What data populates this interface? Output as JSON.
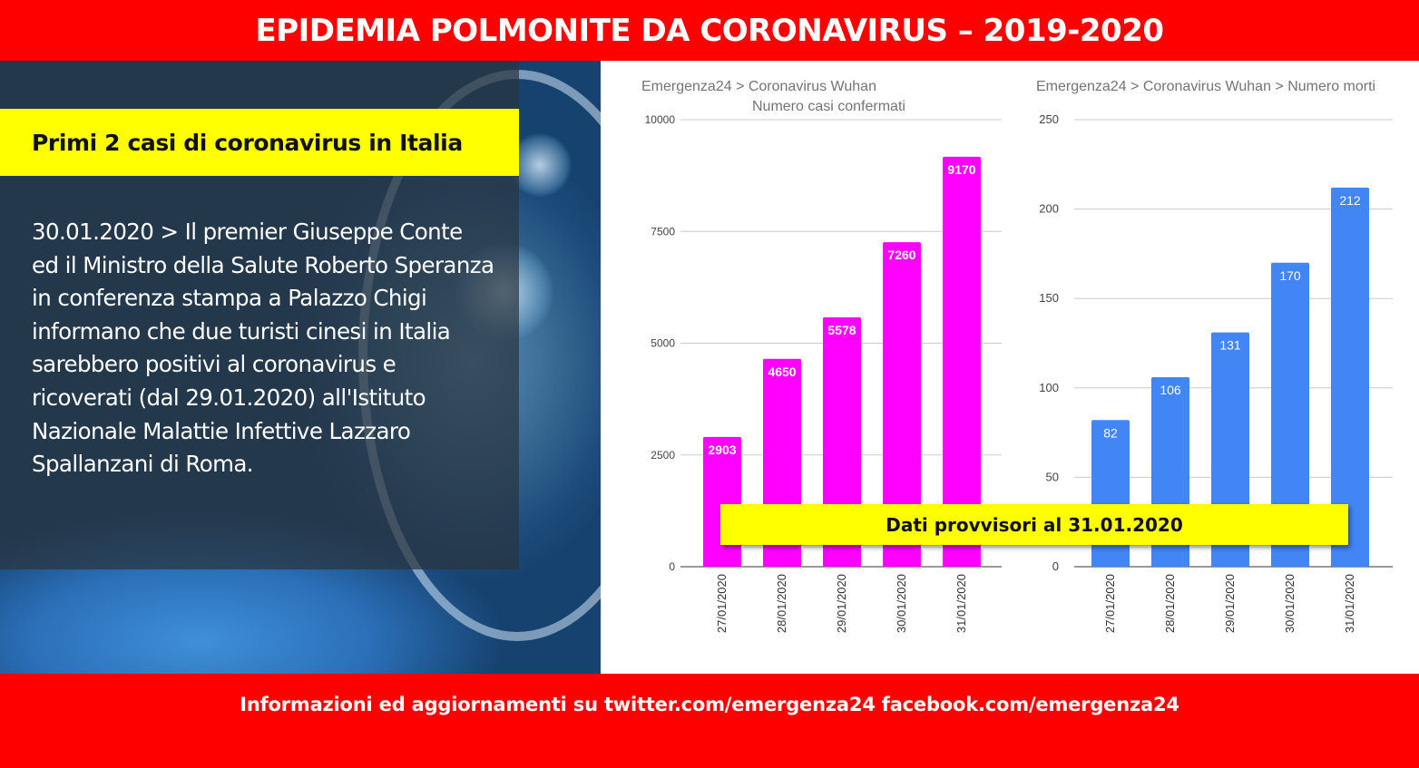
{
  "header": {
    "title": "EPIDEMIA POLMONITE DA CORONAVIRUS – 2019-2020"
  },
  "panel": {
    "headline": "Primi 2 casi di coronavirus in Italia",
    "body": "30.01.2020 > Il premier Giuseppe Conte ed il Ministro della Salute Roberto Speranza in conferenza stampa a Palazzo Chigi informano che due turisti cinesi in Italia sarebbero positivi al coronavirus e ricoverati (dal 29.01.2020) all'Istituto Nazionale Malattie Infettive Lazzaro Spallanzani di Roma."
  },
  "note": "Dati provvisori  al 31.01.2020",
  "footer": {
    "text": "Informazioni ed aggiornamenti su twitter.com/emergenza24   facebook.com/emergenza24"
  },
  "chart_data": [
    {
      "type": "bar",
      "title": "Emergenza24 > Coronavirus Wuhan",
      "subtitle": "Numero casi confermati",
      "categories": [
        "27/01/2020",
        "28/01/2020",
        "29/01/2020",
        "30/01/2020",
        "31/01/2020"
      ],
      "values": [
        2903,
        4650,
        5578,
        7260,
        9170
      ],
      "ylim": [
        0,
        10000
      ],
      "yticks": [
        0,
        2500,
        5000,
        7500,
        10000
      ],
      "color": "#ff00ff",
      "data_labels": true,
      "grid": true
    },
    {
      "type": "bar",
      "title": "Emergenza24 > Coronavirus Wuhan > Numero morti",
      "categories": [
        "27/01/2020",
        "28/01/2020",
        "29/01/2020",
        "30/01/2020",
        "31/01/2020"
      ],
      "values": [
        82,
        106,
        131,
        170,
        212
      ],
      "ylim": [
        0,
        250
      ],
      "yticks": [
        0,
        50,
        100,
        150,
        200,
        250
      ],
      "color": "#4285f4",
      "data_labels": true,
      "grid": true
    }
  ]
}
